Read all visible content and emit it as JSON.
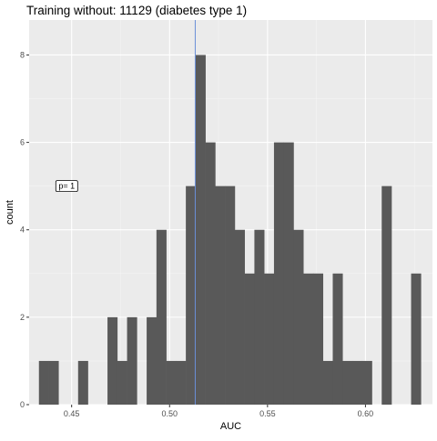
{
  "chart_data": {
    "type": "bar",
    "title": "Training without: 11129 (diabetes type 1)",
    "xlabel": "AUC",
    "ylabel": "count",
    "xlim": [
      0.4283,
      0.6342
    ],
    "ylim": [
      0,
      8.8
    ],
    "x_ticks": [
      0.45,
      0.5,
      0.55,
      0.6
    ],
    "x_tick_labels": [
      "0.45",
      "0.50",
      "0.55",
      "0.60"
    ],
    "y_ticks": [
      0,
      2,
      4,
      6,
      8
    ],
    "y_tick_labels": [
      "0",
      "2",
      "4",
      "6",
      "8"
    ],
    "bin_start": 0.4333,
    "bin_width": 0.005,
    "values": [
      1,
      1,
      0,
      0,
      1,
      0,
      0,
      2,
      1,
      2,
      0,
      2,
      4,
      1,
      1,
      5,
      8,
      6,
      5,
      5,
      4,
      3,
      4,
      3,
      6,
      6,
      4,
      3,
      3,
      1,
      3,
      1,
      1,
      1,
      0,
      5,
      0,
      0,
      3
    ],
    "vline_x": 0.5131,
    "vline_color": "#6a8fd8",
    "annotation": {
      "text": "p= 1",
      "x": 0.4475,
      "y": 5
    },
    "bar_color": "#595959",
    "panel_background": "#ebebeb",
    "grid": true
  }
}
